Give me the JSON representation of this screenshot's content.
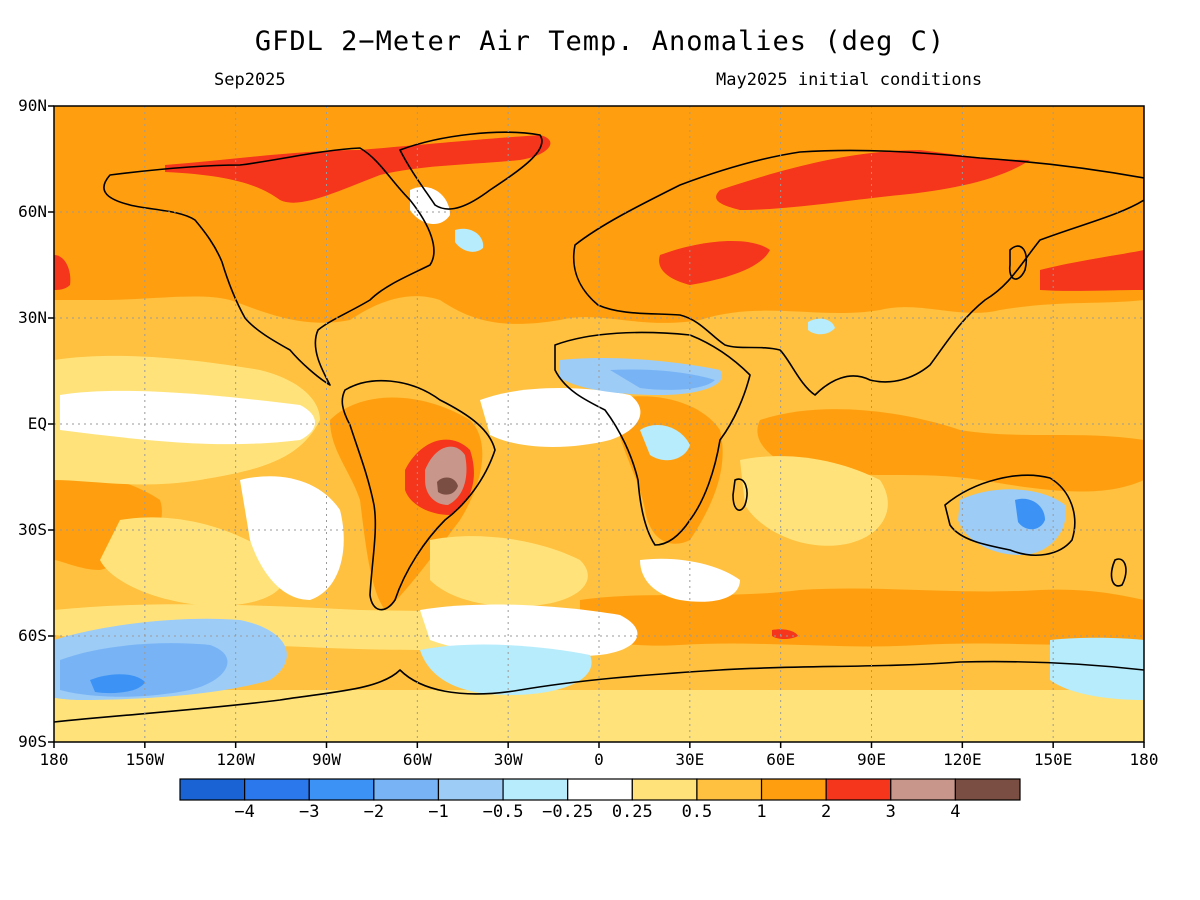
{
  "title": "GFDL 2−Meter Air Temp. Anomalies (deg C)",
  "valid_month": "Sep2025",
  "init_note": "May2025 initial conditions",
  "lat_labels": [
    "90N",
    "60N",
    "30N",
    "EQ",
    "30S",
    "60S",
    "90S"
  ],
  "lon_labels": [
    "180",
    "150W",
    "120W",
    "90W",
    "60W",
    "30W",
    "0",
    "30E",
    "60E",
    "90E",
    "120E",
    "150E",
    "180"
  ],
  "colorbar": {
    "colors": [
      "#1a63d4",
      "#2b78ec",
      "#3c93f5",
      "#78b4f5",
      "#9dccf7",
      "#b6ecfb",
      "#ffffff",
      "#ffe37a",
      "#ffc13f",
      "#ff9f0f",
      "#f5351c",
      "#c8968a",
      "#7b4e43"
    ],
    "labels": [
      "−4",
      "−3",
      "−2",
      "−1",
      "−0.5",
      "−0.25",
      "0.25",
      "0.5",
      "1",
      "2",
      "3",
      "4"
    ]
  },
  "map_colors": {
    "ocean_base": "#ffc13f",
    "light": "#ffe37a",
    "neutral": "#ffffff",
    "warm": "#ff9f0f",
    "hot": "#f5351c",
    "extreme": "#c8968a",
    "max": "#7b4e43",
    "cool1": "#b6ecfb",
    "cool2": "#9dccf7",
    "cool3": "#78b4f5",
    "cool4": "#3c93f5",
    "cool5": "#2b78ec"
  }
}
